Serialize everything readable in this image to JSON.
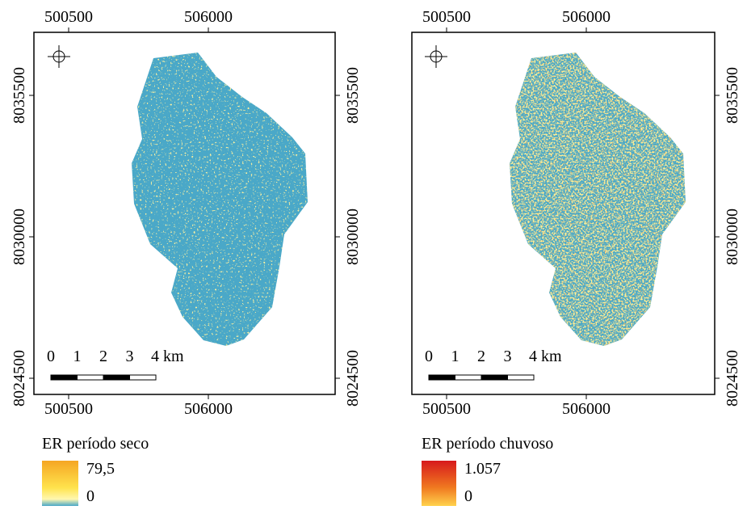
{
  "panels": [
    {
      "x_ticks_top": [
        "500500",
        "506000"
      ],
      "x_ticks_bottom": [
        "500500",
        "506000"
      ],
      "y_ticks_left": [
        "8035500",
        "8030000",
        "8024500"
      ],
      "y_ticks_right": [
        "8035500",
        "8030000",
        "8024500"
      ],
      "scale_bar": [
        "0",
        "1",
        "2",
        "3",
        "4 km"
      ],
      "legend": {
        "title": "ER período seco",
        "max": "79,5",
        "min": "0"
      }
    },
    {
      "x_ticks_top": [
        "500500",
        "506000"
      ],
      "x_ticks_bottom": [
        "500500",
        "506000"
      ],
      "y_ticks_right": [
        "8035500",
        "8030000",
        "8024500"
      ],
      "scale_bar": [
        "0",
        "1",
        "2",
        "3",
        "4 km"
      ],
      "legend": {
        "title": "ER período chuvoso",
        "max": "1.057",
        "min": "0"
      }
    }
  ]
}
